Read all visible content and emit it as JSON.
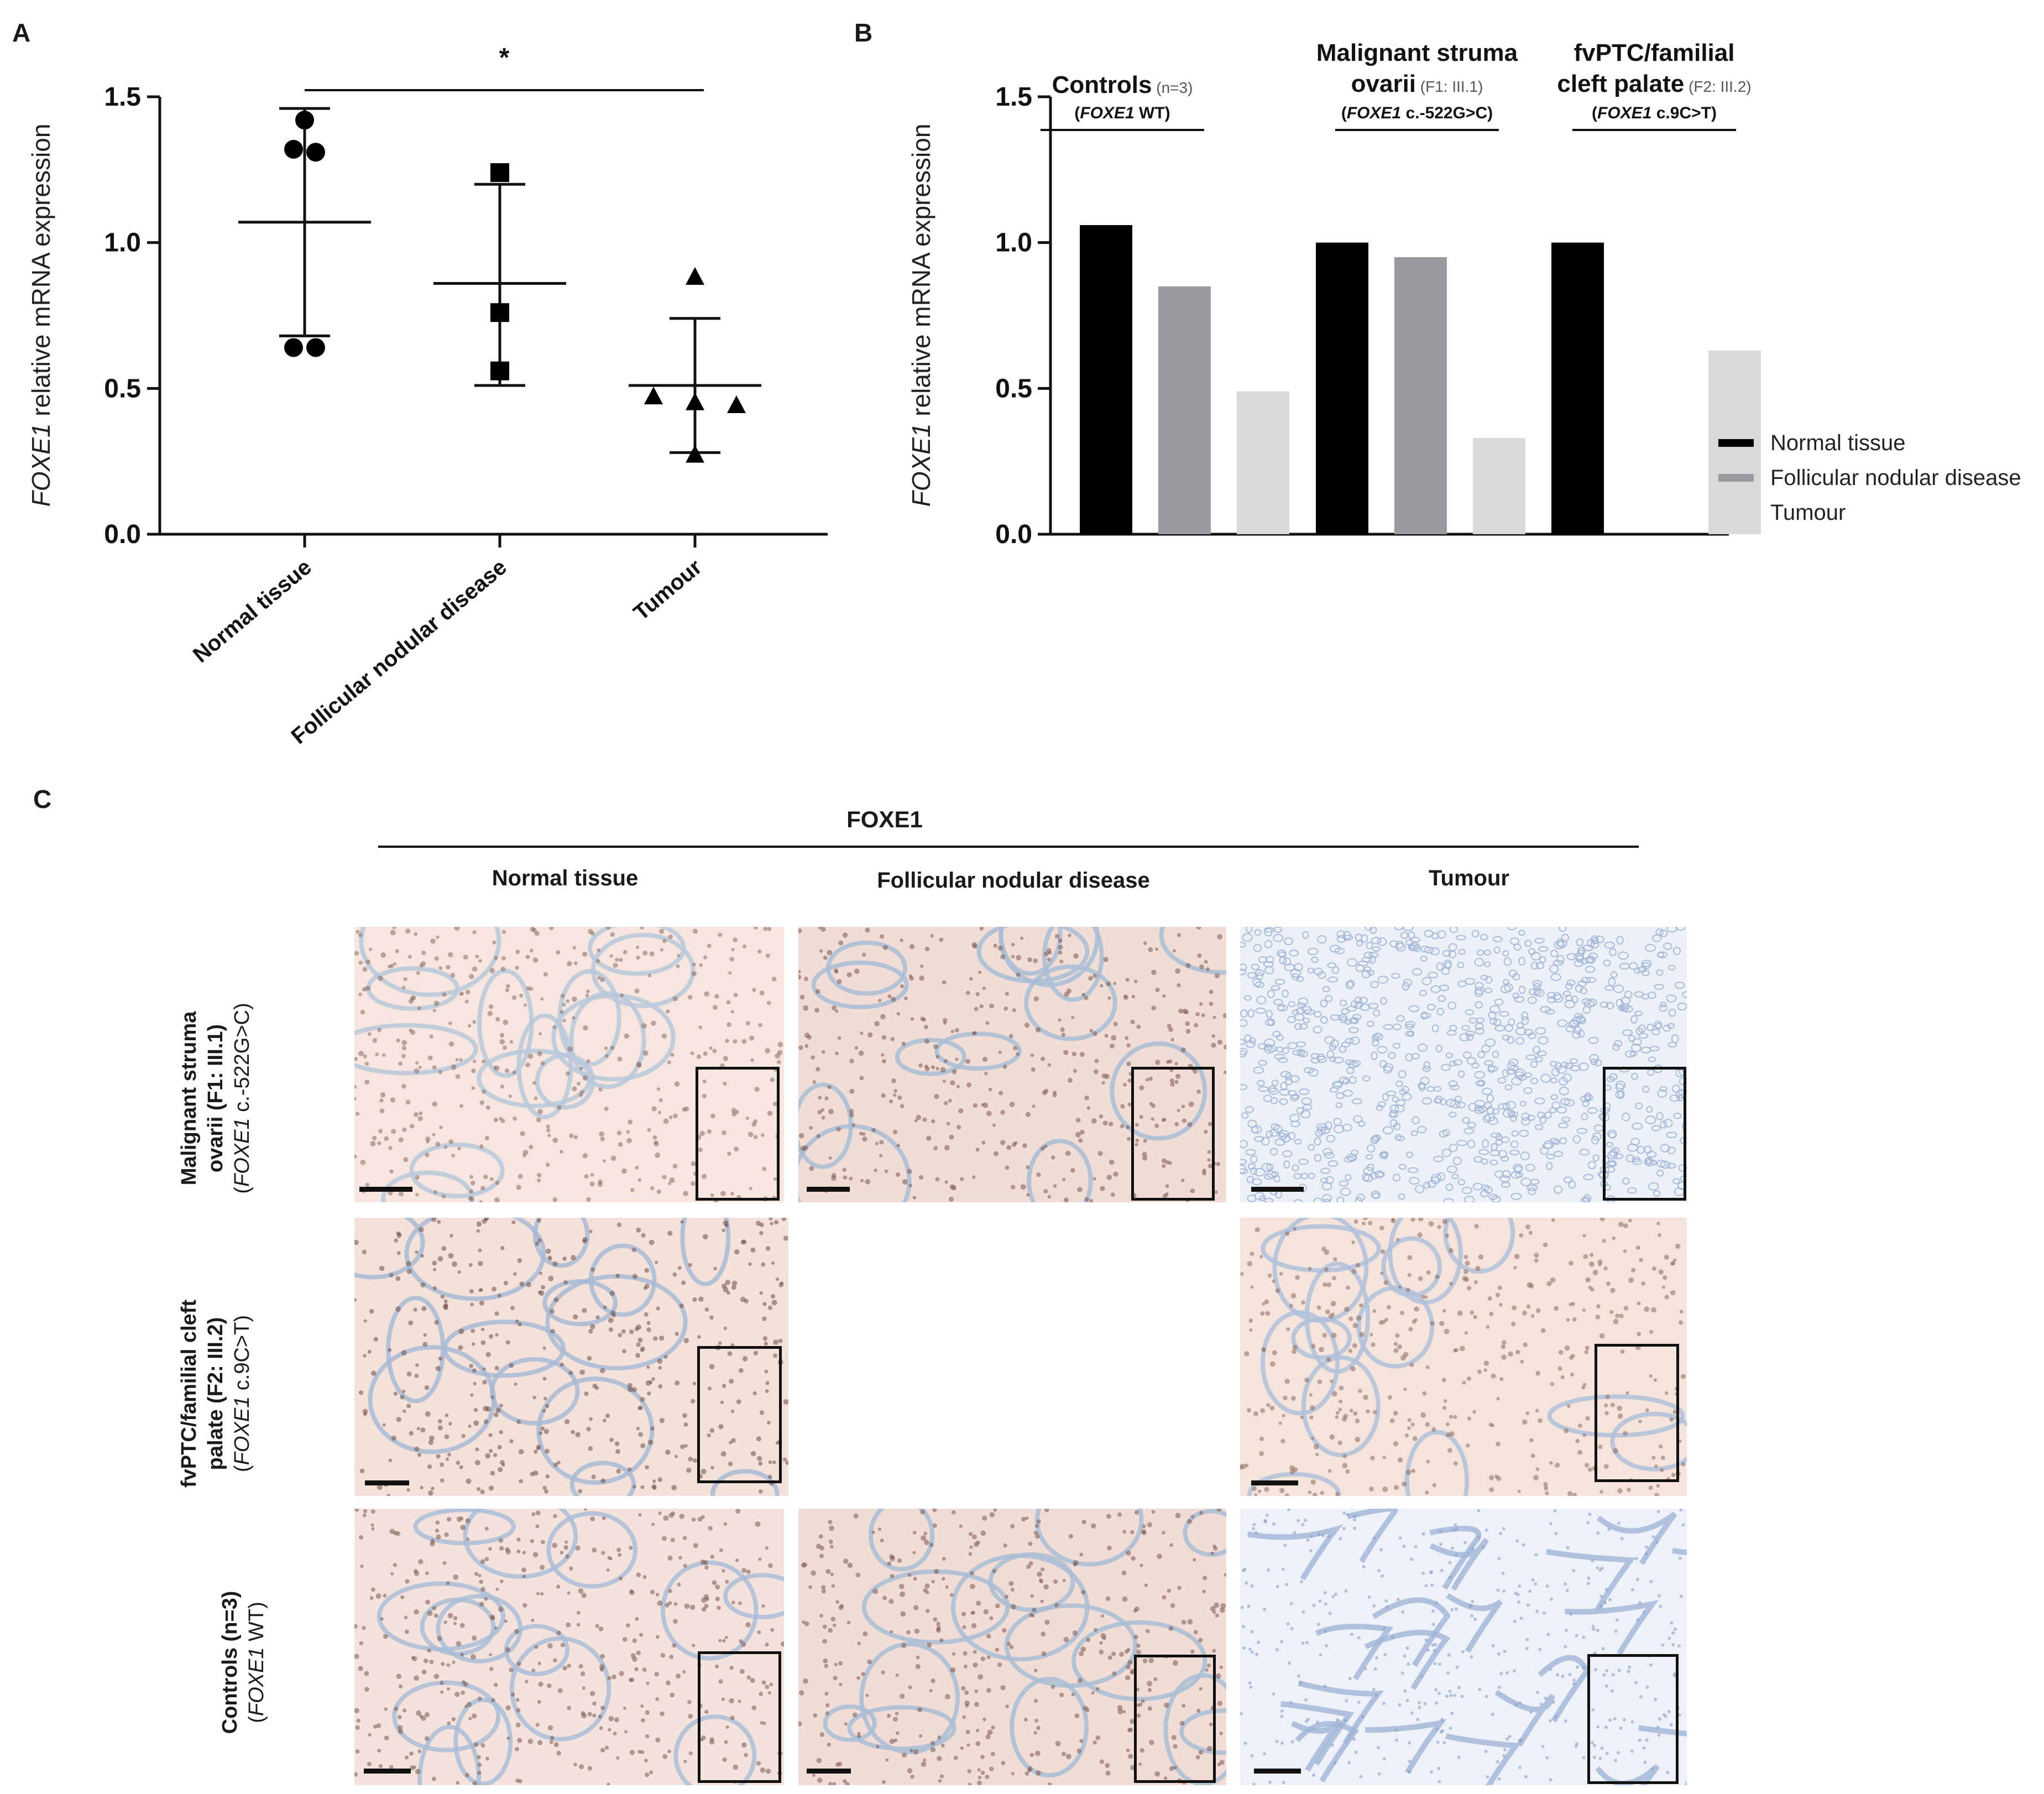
{
  "panels": {
    "a": "A",
    "b": "B",
    "c": "C"
  },
  "chart_a": {
    "type": "scatter",
    "ylabel_italic": "FOXE1",
    "ylabel_rest": " relative mRNA expression",
    "yticks": [
      "0.0",
      "0.5",
      "1.0",
      "1.5"
    ],
    "ylim": [
      0,
      1.5
    ],
    "categories": [
      "Normal tissue",
      "Follicular nodular disease",
      "Tumour"
    ],
    "significance": {
      "label": "*",
      "from": "Normal tissue",
      "to": "Tumour"
    },
    "groups": [
      {
        "name": "Normal tissue",
        "marker": "circle",
        "points": [
          1.42,
          1.32,
          1.31,
          0.64,
          0.64
        ],
        "mean": 1.07,
        "sd_low": 0.68,
        "sd_high": 1.46
      },
      {
        "name": "Follicular nodular disease",
        "marker": "square",
        "points": [
          1.24,
          0.76,
          0.56
        ],
        "mean": 0.86,
        "sd_low": 0.51,
        "sd_high": 1.2
      },
      {
        "name": "Tumour",
        "marker": "triangle",
        "points": [
          0.88,
          0.47,
          0.45,
          0.44,
          0.27
        ],
        "mean": 0.51,
        "sd_low": 0.28,
        "sd_high": 0.74
      }
    ]
  },
  "chart_b": {
    "type": "bar",
    "ylabel_italic": "FOXE1",
    "ylabel_rest": " relative mRNA expression",
    "yticks": [
      "0.0",
      "0.5",
      "1.0",
      "1.5"
    ],
    "ylim": [
      0,
      1.5
    ],
    "groups": [
      {
        "title_lines": [
          "Controls"
        ],
        "title_note": "(n=3)",
        "gene_italic": "FOXE1",
        "gene_rest": " WT"
      },
      {
        "title_lines": [
          "Malignant struma",
          "ovarii"
        ],
        "title_note": "(F1: III.1)",
        "gene_italic": "FOXE1",
        "gene_rest": " c.-522G>C"
      },
      {
        "title_lines": [
          "fvPTC/familial",
          "cleft palate"
        ],
        "title_note": "(F2: III.2)",
        "gene_italic": "FOXE1",
        "gene_rest": " c.9C>T"
      }
    ],
    "series": [
      {
        "name": "Normal tissue",
        "color": "#000000",
        "values": [
          1.06,
          1.0,
          1.0
        ]
      },
      {
        "name": "Follicular nodular disease",
        "color": "#9a9a9e",
        "values": [
          0.85,
          0.95,
          null
        ]
      },
      {
        "name": "Tumour",
        "color": "#d9d9d9",
        "values": [
          0.49,
          0.33,
          0.63
        ]
      }
    ],
    "legend_position": "right"
  },
  "panel_c": {
    "title": "FOXE1",
    "columns": [
      "Normal tissue",
      "Follicular nodular disease",
      "Tumour"
    ],
    "rows": [
      {
        "bold": [
          "Malignant struma",
          "ovarii (F1: III.1)"
        ],
        "gene_italic": "FOXE1",
        "gene_rest": " c.-522G>C"
      },
      {
        "bold": [
          "fvPTC/familial cleft",
          "palate (F2: III.2)"
        ],
        "gene_italic": "FOXE1",
        "gene_rest": " c.9C>T"
      },
      {
        "bold": [
          "Controls (n=3)"
        ],
        "gene_italic": "FOXE1",
        "gene_rest": " WT"
      }
    ]
  }
}
